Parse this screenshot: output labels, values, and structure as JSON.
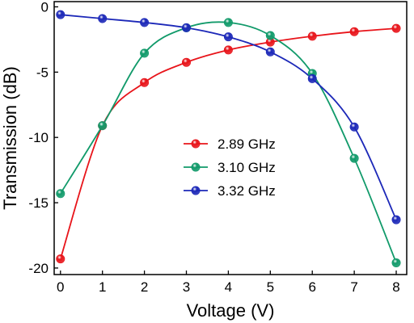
{
  "chart_data": {
    "type": "line",
    "xlabel": "Voltage (V)",
    "ylabel": "Transmission (dB)",
    "xlim": [
      -0.15,
      8.25
    ],
    "ylim": [
      -20.5,
      0.4
    ],
    "x_ticks": [
      0,
      1,
      2,
      3,
      4,
      5,
      6,
      7,
      8
    ],
    "y_ticks": [
      0,
      -5,
      -10,
      -15,
      -20
    ],
    "grid": false,
    "legend_position": "center",
    "x": [
      0,
      1,
      2,
      3,
      4,
      5,
      6,
      7,
      8
    ],
    "series": [
      {
        "name": "2.89 GHz",
        "color": "#e8141a",
        "values": [
          -19.3,
          -9.1,
          -5.8,
          -4.25,
          -3.3,
          -2.7,
          -2.25,
          -1.9,
          -1.65
        ]
      },
      {
        "name": "3.10 GHz",
        "color": "#119a6a",
        "values": [
          -14.3,
          -9.1,
          -3.55,
          -1.6,
          -1.2,
          -2.2,
          -5.1,
          -11.6,
          -19.6
        ]
      },
      {
        "name": "3.32 GHz",
        "color": "#1c28b8",
        "values": [
          -0.6,
          -0.9,
          -1.2,
          -1.6,
          -2.3,
          -3.45,
          -5.5,
          -9.2,
          -16.3
        ]
      }
    ]
  }
}
